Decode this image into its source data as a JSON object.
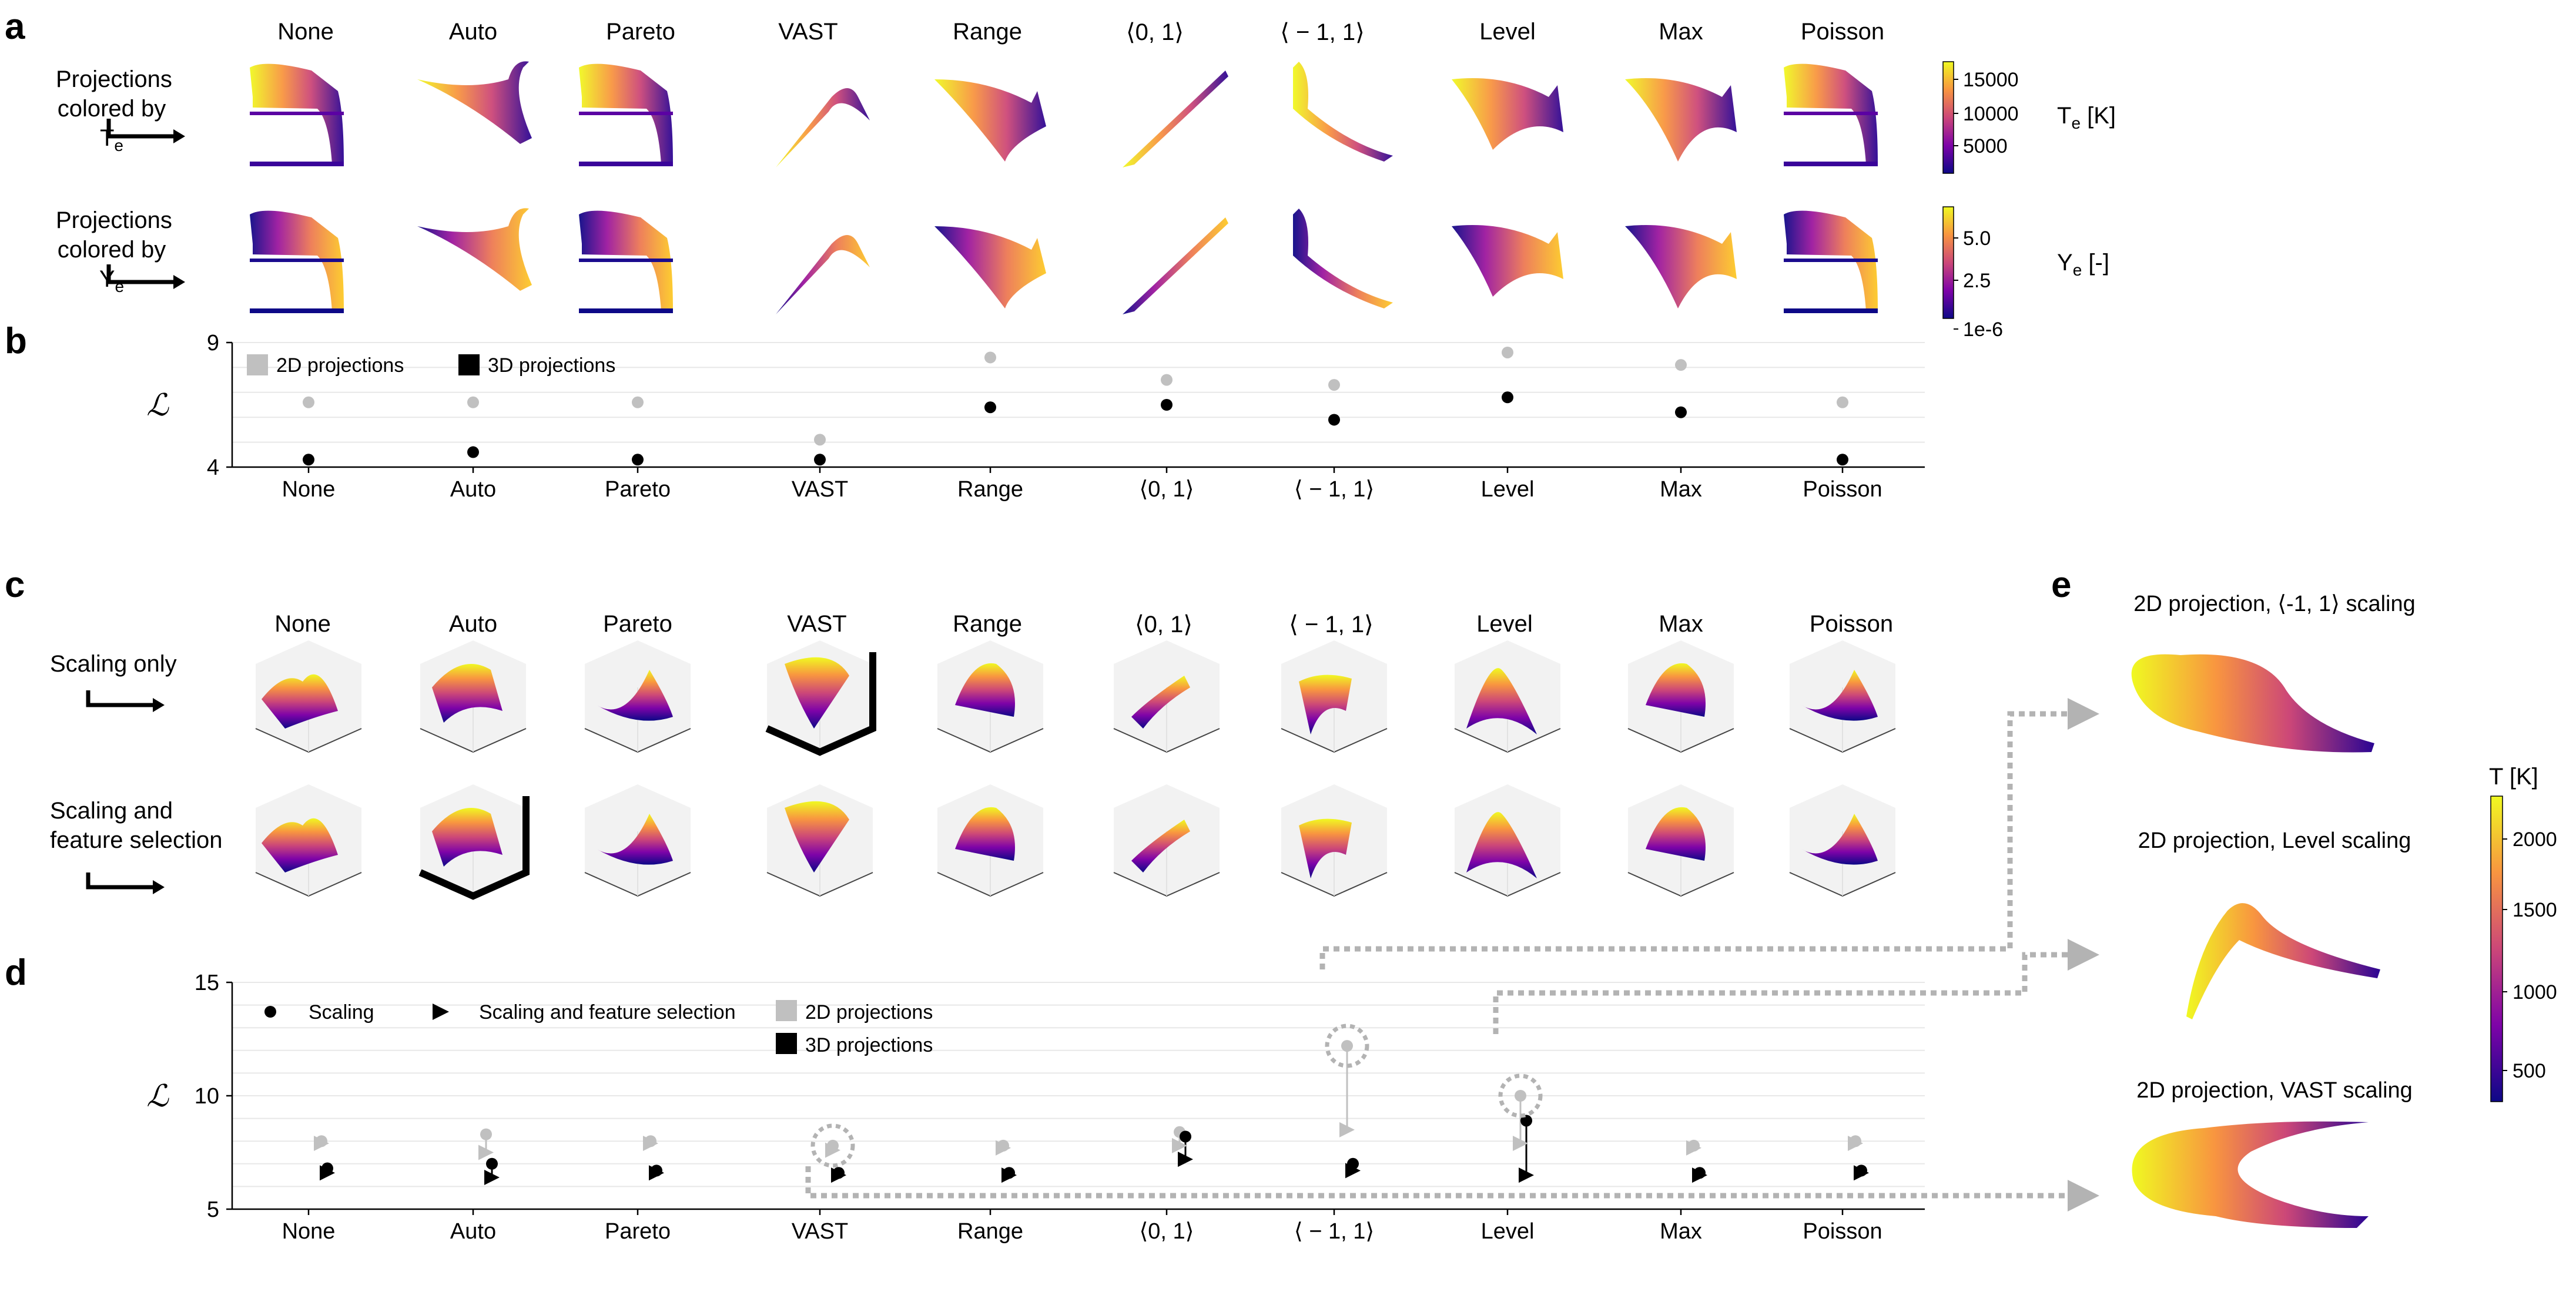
{
  "panels": {
    "a": "a",
    "b": "b",
    "c": "c",
    "d": "d",
    "e": "e"
  },
  "methods": [
    "None",
    "Auto",
    "Pareto",
    "VAST",
    "Range",
    "⟨0, 1⟩",
    "⟨ − 1, 1⟩",
    "Level",
    "Max",
    "Poisson"
  ],
  "panel_a": {
    "row1_label": [
      "Projections",
      "colored by T"
    ],
    "row1_sub": "e",
    "row2_label": [
      "Projections",
      "colored by Y"
    ],
    "row2_sub": "e",
    "cbar1": {
      "ticks": [
        "15000",
        "10000",
        "5000"
      ],
      "title": "T",
      "title_sub": "e",
      "unit": " [K]"
    },
    "cbar2": {
      "ticks": [
        "5.0",
        "2.5",
        "1e-6"
      ],
      "title": "Y",
      "title_sub": "e",
      "unit": " [-]"
    }
  },
  "panel_c": {
    "row1_label": [
      "Scaling only"
    ],
    "row2_label": [
      "Scaling and",
      "feature selection"
    ]
  },
  "panel_e": {
    "titles": [
      "2D projection, ⟨-1, 1⟩ scaling",
      "2D projection, Level scaling",
      "2D projection, VAST scaling"
    ],
    "cbar": {
      "title": "T [K]",
      "ticks": [
        "2000",
        "1500",
        "1000",
        "500"
      ]
    }
  },
  "colors": {
    "dark": "#000000",
    "light": "#c0c0c0",
    "connector": "#b3b3b3",
    "grid": "#e8e8e8"
  },
  "chart_data": [
    {
      "id": "b",
      "type": "scatter",
      "title": "",
      "ylabel": "ℒ",
      "ylim": [
        4,
        9
      ],
      "yticks": [
        "4",
        "9"
      ],
      "grid": true,
      "legend": [
        {
          "name": "2D projections",
          "color": "#c0c0c0"
        },
        {
          "name": "3D projections",
          "color": "#000000"
        }
      ],
      "categories": [
        "None",
        "Auto",
        "Pareto",
        "VAST",
        "Range",
        "⟨0, 1⟩",
        "⟨ − 1, 1⟩",
        "Level",
        "Max",
        "Poisson"
      ],
      "series": [
        {
          "name": "2D projections",
          "values": [
            6.6,
            6.6,
            6.6,
            5.1,
            8.4,
            7.5,
            7.3,
            8.6,
            8.1,
            6.6
          ]
        },
        {
          "name": "3D projections",
          "values": [
            4.3,
            4.6,
            4.3,
            4.3,
            6.4,
            6.5,
            5.9,
            6.8,
            6.2,
            4.3
          ]
        }
      ]
    },
    {
      "id": "d",
      "type": "scatter",
      "title": "",
      "ylabel": "ℒ",
      "ylim": [
        5,
        15
      ],
      "yticks": [
        "5",
        "10",
        "15"
      ],
      "grid": true,
      "legend": [
        {
          "name": "Scaling",
          "marker": "circle"
        },
        {
          "name": "Scaling and feature selection",
          "marker": "triangle"
        },
        {
          "name": "2D projections",
          "color": "#c0c0c0"
        },
        {
          "name": "3D projections",
          "color": "#000000"
        }
      ],
      "categories": [
        "None",
        "Auto",
        "Pareto",
        "VAST",
        "Range",
        "⟨0, 1⟩",
        "⟨ − 1, 1⟩",
        "Level",
        "Max",
        "Poisson"
      ],
      "series": [
        {
          "name": "Scaling, 2D",
          "marker": "circle",
          "color": "#c0c0c0",
          "values": [
            8.0,
            8.3,
            8.0,
            7.8,
            7.8,
            8.4,
            12.2,
            10.0,
            7.8,
            8.0
          ]
        },
        {
          "name": "Scaling, 3D",
          "marker": "circle",
          "color": "#000000",
          "values": [
            6.8,
            7.0,
            6.7,
            6.6,
            6.6,
            8.2,
            7.0,
            8.9,
            6.6,
            6.7
          ]
        },
        {
          "name": "Scaling and feature selection, 2D",
          "marker": "triangle",
          "color": "#c0c0c0",
          "values": [
            7.9,
            7.5,
            7.9,
            7.6,
            7.7,
            7.8,
            8.5,
            7.9,
            7.7,
            7.9
          ]
        },
        {
          "name": "Scaling and feature selection, 3D",
          "marker": "triangle",
          "color": "#000000",
          "values": [
            6.6,
            6.4,
            6.6,
            6.5,
            6.5,
            7.2,
            6.7,
            6.5,
            6.5,
            6.6
          ]
        }
      ],
      "highlighted": [
        "VAST",
        "⟨ − 1, 1⟩",
        "Level"
      ]
    }
  ]
}
